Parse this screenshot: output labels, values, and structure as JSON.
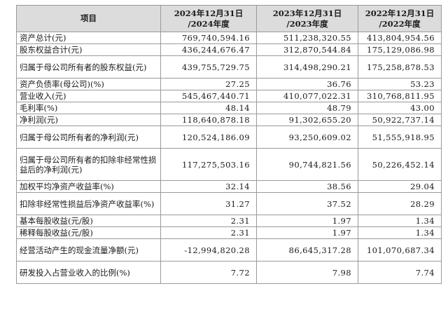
{
  "table": {
    "headers": [
      "项目",
      "2024年12月31日\n/2024年度",
      "2023年12月31日\n/2023年度",
      "2022年12月31日\n/2022年度"
    ],
    "rows": [
      {
        "label": "资产总计(元)",
        "values": [
          "769,740,594.16",
          "511,238,320.55",
          "413,804,954.56"
        ]
      },
      {
        "label": "股东权益合计(元)",
        "values": [
          "436,244,676.47",
          "312,870,544.84",
          "175,129,086.98"
        ]
      },
      {
        "label": "归属于母公司所有者的股东权益(元)",
        "values": [
          "439,755,729.75",
          "314,498,290.21",
          "175,258,878.53"
        ]
      },
      {
        "label": "资产负债率(母公司)(%)",
        "values": [
          "27.25",
          "36.76",
          "53.23"
        ]
      },
      {
        "label": "营业收入(元)",
        "values": [
          "545,467,440.71",
          "410,077,022.31",
          "310,768,811.95"
        ]
      },
      {
        "label": "毛利率(%)",
        "values": [
          "48.14",
          "48.79",
          "43.00"
        ]
      },
      {
        "label": "净利润(元)",
        "values": [
          "118,640,878.18",
          "91,302,655.20",
          "50,922,737.14"
        ]
      },
      {
        "label": "归属于母公司所有者的净利润(元)",
        "values": [
          "120,524,186.09",
          "93,250,609.02",
          "51,555,918.95"
        ]
      },
      {
        "label": "归属于母公司所有者的扣除非经常性损益后的净利润(元)",
        "values": [
          "117,275,503.16",
          "90,744,821.56",
          "50,226,452.14"
        ]
      },
      {
        "label": "加权平均净资产收益率(%)",
        "values": [
          "32.14",
          "38.56",
          "29.04"
        ]
      },
      {
        "label": "扣除非经常性损益后净资产收益率(%)",
        "values": [
          "31.27",
          "37.52",
          "28.29"
        ]
      },
      {
        "label": "基本每股收益(元/股)",
        "values": [
          "2.31",
          "1.97",
          "1.34"
        ]
      },
      {
        "label": "稀释每股收益(元/股)",
        "values": [
          "2.31",
          "1.97",
          "1.34"
        ]
      },
      {
        "label": "经营活动产生的现金流量净额(元)",
        "values": [
          "-12,994,820.28",
          "86,645,317.28",
          "101,070,687.34"
        ]
      },
      {
        "label": "研发投入占营业收入的比例(%)",
        "values": [
          "7.72",
          "7.98",
          "7.74"
        ]
      }
    ]
  }
}
